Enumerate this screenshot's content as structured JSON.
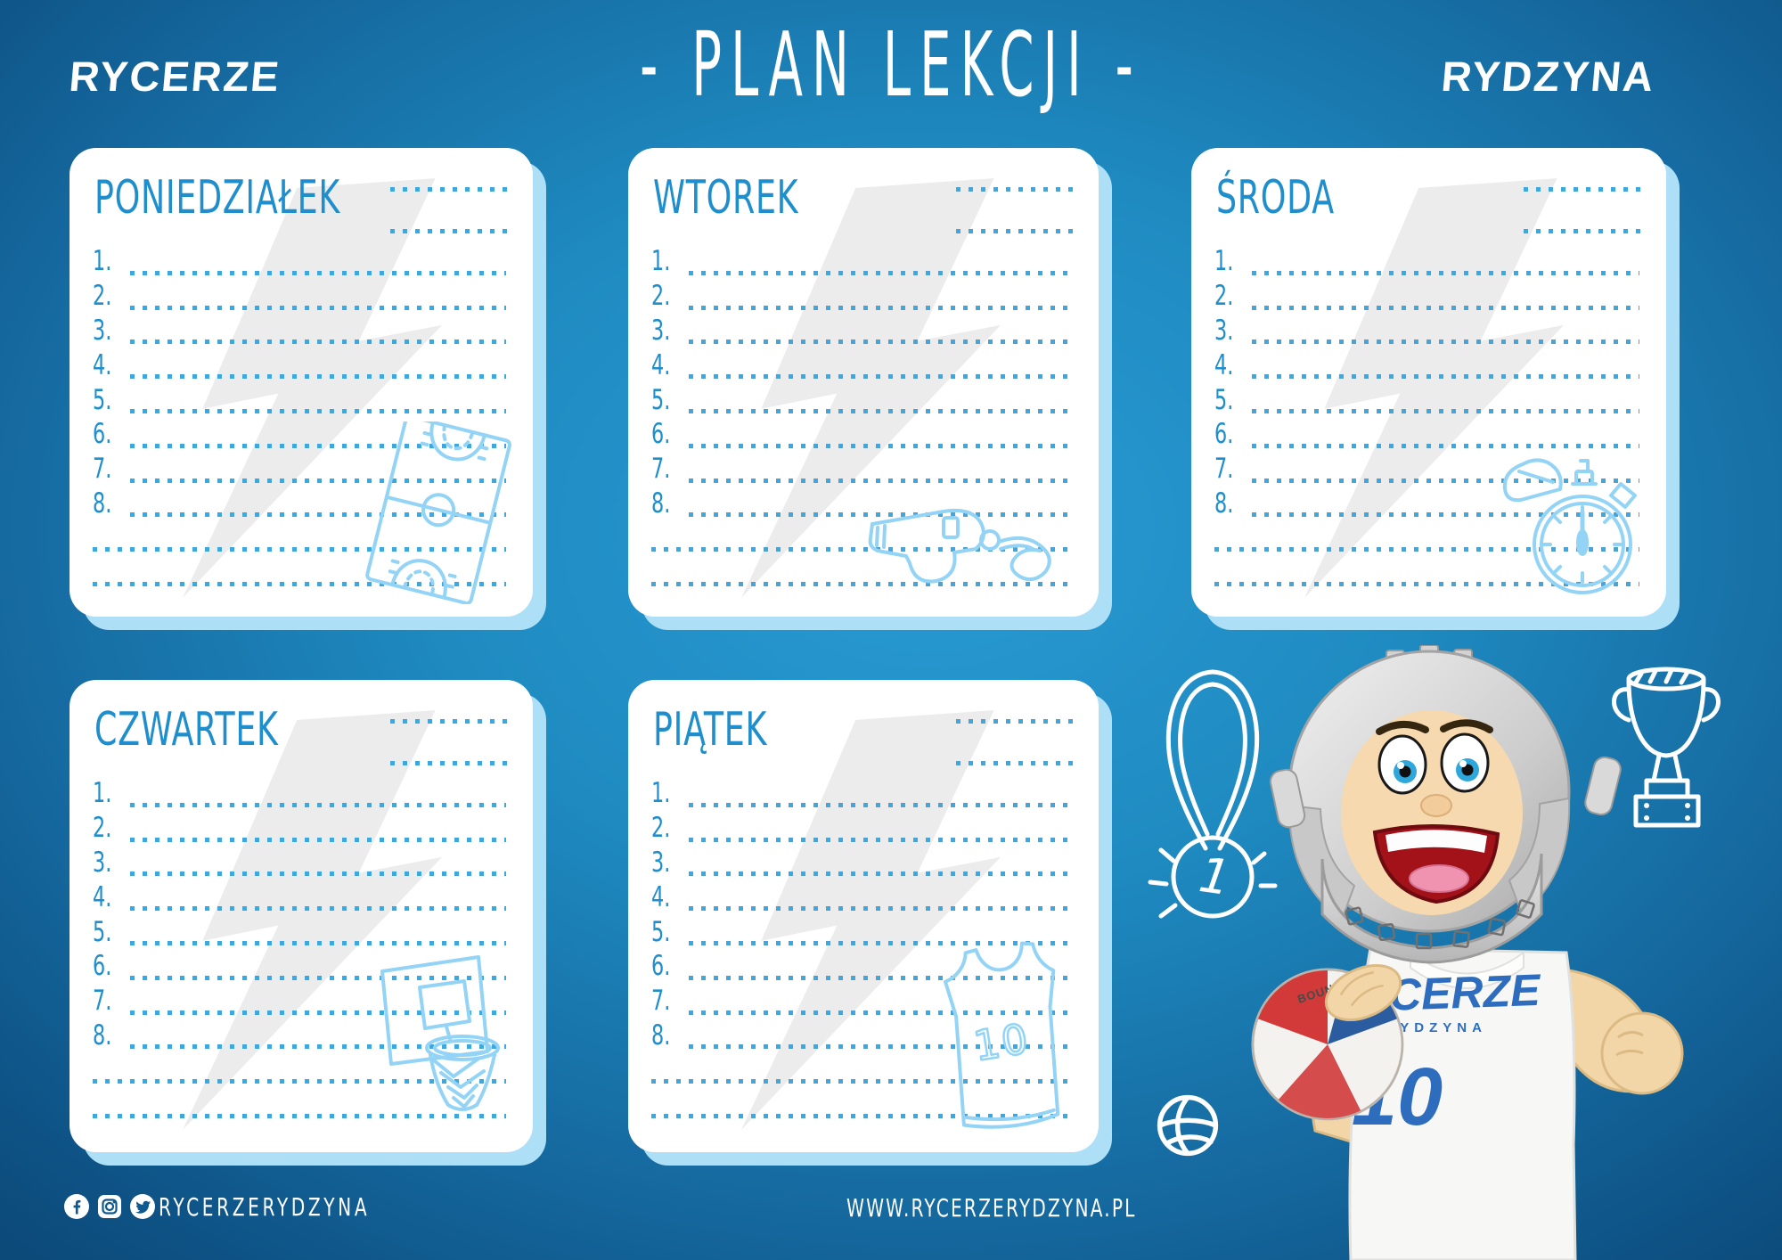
{
  "header": {
    "logo_left": "RYCERZE",
    "title": "- PLAN LEKCJI -",
    "logo_right": "RYDZYNA"
  },
  "days": [
    {
      "name": "PONIEDZIAŁEK",
      "doodle": "basketball-court-icon"
    },
    {
      "name": "WTOREK",
      "doodle": "whistle-icon"
    },
    {
      "name": "ŚRODA",
      "doodle": "stopwatch-icon"
    },
    {
      "name": "CZWARTEK",
      "doodle": "basketball-hoop-icon"
    },
    {
      "name": "PIĄTEK",
      "doodle": "jersey-icon"
    }
  ],
  "schedule": {
    "line_numbers": [
      "1.",
      "2.",
      "3.",
      "4.",
      "5.",
      "6.",
      "7.",
      "8."
    ],
    "extra_blank_lines": 2,
    "header_dotted_lines": 2
  },
  "mascot": {
    "jersey_team": "RYCERZE",
    "jersey_city": "RYDZYNA",
    "jersey_number": "10",
    "ball_brand": "BOUNCE",
    "medal_number": "1"
  },
  "doodles": {
    "jersey_number": "10"
  },
  "footer": {
    "social_icons": [
      "facebook-icon",
      "instagram-icon",
      "twitter-icon"
    ],
    "social_handle": "RYCERZERYDZYNA",
    "website": "WWW.RYCERZERYDZYNA.PL"
  },
  "colors": {
    "background_center": "#2a9bd4",
    "background_edge": "#0c4a7a",
    "day_title_blue": "#1e8ecd",
    "dotted_line_blue": "#3fa6de",
    "doodle_light_blue": "#93d4f6",
    "card_shadow_edge": "#addff7",
    "watermark_gray": "#ececec",
    "jersey_text_blue": "#2e6cbe",
    "text_white": "#ffffff"
  }
}
